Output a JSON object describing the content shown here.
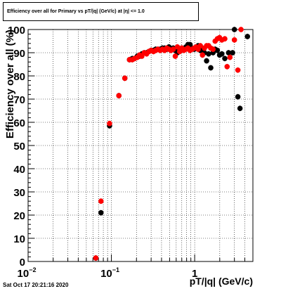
{
  "chart_data": {
    "type": "scatter",
    "title": "Efficiency over all for Primary vs pT/|q| (GeV/c) at |η| <= 1.0",
    "xlabel": "pT/|q| (GeV/c)",
    "ylabel": "Efficiency over all (%)",
    "x_scale": "log",
    "xlim": [
      0.01,
      5
    ],
    "ylim": [
      0,
      100
    ],
    "grid": true,
    "x_tick_labels": [
      {
        "value": 0.01,
        "base": "10",
        "exp": "−2"
      },
      {
        "value": 0.1,
        "base": "10",
        "exp": "−1"
      },
      {
        "value": 1,
        "base": "1",
        "exp": ""
      }
    ],
    "y_tick_labels": [
      "0",
      "10",
      "20",
      "30",
      "40",
      "50",
      "60",
      "70",
      "80",
      "90",
      "100"
    ],
    "series": [
      {
        "color": "#000000",
        "points": [
          [
            0.065,
            1.5
          ],
          [
            0.075,
            21
          ],
          [
            0.095,
            58.5
          ],
          [
            0.123,
            71.5
          ],
          [
            0.145,
            79
          ],
          [
            0.165,
            87
          ],
          [
            0.178,
            87.5
          ],
          [
            0.19,
            87.5
          ],
          [
            0.205,
            88.5
          ],
          [
            0.218,
            88.5
          ],
          [
            0.232,
            89.5
          ],
          [
            0.248,
            90
          ],
          [
            0.265,
            90
          ],
          [
            0.282,
            90.5
          ],
          [
            0.3,
            91
          ],
          [
            0.32,
            91
          ],
          [
            0.34,
            91.5
          ],
          [
            0.362,
            91.5
          ],
          [
            0.385,
            91.5
          ],
          [
            0.41,
            92
          ],
          [
            0.435,
            92
          ],
          [
            0.462,
            91.5
          ],
          [
            0.49,
            92.5
          ],
          [
            0.52,
            91.5
          ],
          [
            0.552,
            92
          ],
          [
            0.585,
            91
          ],
          [
            0.62,
            90
          ],
          [
            0.66,
            91.5
          ],
          [
            0.7,
            92
          ],
          [
            0.74,
            91.5
          ],
          [
            0.785,
            92.5
          ],
          [
            0.83,
            93.5
          ],
          [
            0.88,
            93.5
          ],
          [
            0.93,
            92
          ],
          [
            0.985,
            91.5
          ],
          [
            1.04,
            92
          ],
          [
            1.1,
            93
          ],
          [
            1.17,
            91
          ],
          [
            1.24,
            92
          ],
          [
            1.31,
            90
          ],
          [
            1.39,
            86.5
          ],
          [
            1.47,
            89.5
          ],
          [
            1.56,
            83.5
          ],
          [
            1.66,
            90
          ],
          [
            1.76,
            91.5
          ],
          [
            1.87,
            91
          ],
          [
            1.99,
            89
          ],
          [
            2.12,
            89.5
          ],
          [
            2.3,
            87.5
          ],
          [
            2.55,
            90
          ],
          [
            2.85,
            90
          ],
          [
            3.0,
            100
          ],
          [
            3.3,
            71
          ],
          [
            3.5,
            66
          ],
          [
            4.3,
            97
          ]
        ]
      },
      {
        "color": "#ff0000",
        "points": [
          [
            0.065,
            1.5
          ],
          [
            0.075,
            26
          ],
          [
            0.095,
            59.5
          ],
          [
            0.123,
            71.5
          ],
          [
            0.145,
            79
          ],
          [
            0.165,
            87
          ],
          [
            0.178,
            87
          ],
          [
            0.19,
            87.5
          ],
          [
            0.205,
            88
          ],
          [
            0.218,
            89
          ],
          [
            0.232,
            88.5
          ],
          [
            0.248,
            90
          ],
          [
            0.265,
            89.5
          ],
          [
            0.282,
            90.5
          ],
          [
            0.3,
            91
          ],
          [
            0.32,
            90.5
          ],
          [
            0.34,
            91
          ],
          [
            0.362,
            91.5
          ],
          [
            0.385,
            91
          ],
          [
            0.41,
            91.5
          ],
          [
            0.435,
            91
          ],
          [
            0.462,
            92
          ],
          [
            0.49,
            91.5
          ],
          [
            0.52,
            91
          ],
          [
            0.552,
            91.5
          ],
          [
            0.585,
            88.5
          ],
          [
            0.62,
            92.5
          ],
          [
            0.66,
            90.5
          ],
          [
            0.7,
            92
          ],
          [
            0.74,
            91
          ],
          [
            0.785,
            91.5
          ],
          [
            0.83,
            92
          ],
          [
            0.88,
            91
          ],
          [
            0.93,
            91.5
          ],
          [
            0.985,
            92
          ],
          [
            1.04,
            92.5
          ],
          [
            1.1,
            91.5
          ],
          [
            1.17,
            93
          ],
          [
            1.24,
            89
          ],
          [
            1.31,
            92
          ],
          [
            1.39,
            93
          ],
          [
            1.47,
            93
          ],
          [
            1.56,
            92
          ],
          [
            1.66,
            91.5
          ],
          [
            1.76,
            95
          ],
          [
            1.87,
            96
          ],
          [
            1.99,
            96.5
          ],
          [
            2.12,
            95.5
          ],
          [
            2.3,
            96
          ],
          [
            2.45,
            84
          ],
          [
            2.65,
            88
          ],
          [
            3.0,
            95.5
          ],
          [
            3.3,
            82.5
          ],
          [
            3.6,
            100
          ]
        ]
      }
    ]
  },
  "footer_text": "Sat Oct 17 20:21:16 2020"
}
